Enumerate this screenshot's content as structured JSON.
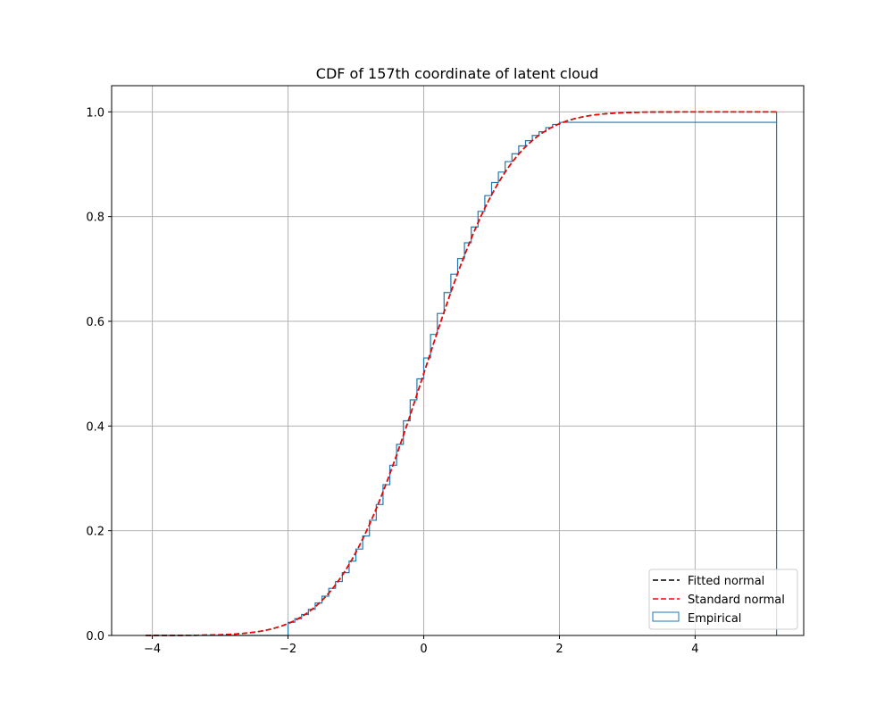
{
  "chart_data": {
    "type": "line",
    "title": "CDF of 157th coordinate of latent cloud",
    "xlabel": "",
    "ylabel": "",
    "xlim": [
      -4.6,
      5.6
    ],
    "ylim": [
      0.0,
      1.05
    ],
    "xticks": [
      -4,
      -2,
      0,
      2,
      4
    ],
    "xtick_labels": [
      "−4",
      "−2",
      "0",
      "2",
      "4"
    ],
    "yticks": [
      0.0,
      0.2,
      0.4,
      0.6,
      0.8,
      1.0
    ],
    "ytick_labels": [
      "0.0",
      "0.2",
      "0.4",
      "0.6",
      "0.8",
      "1.0"
    ],
    "grid": true,
    "legend_placement": "lower-right",
    "legend": [
      "Fitted normal",
      "Standard normal",
      "Empirical"
    ],
    "series": [
      {
        "name": "Fitted normal",
        "style": "dashed",
        "color": "#000000",
        "mean": 0.0,
        "std": 1.0,
        "x_range": [
          -4.1,
          5.2
        ]
      },
      {
        "name": "Standard normal",
        "style": "dashed",
        "color": "#ff0000",
        "mean": 0.0,
        "std": 1.0,
        "x_range": [
          -4.1,
          5.2
        ]
      },
      {
        "name": "Empirical",
        "style": "step",
        "color": "#1f77b4",
        "x": [
          -4.1,
          -2.0,
          -1.9,
          -1.8,
          -1.7,
          -1.6,
          -1.5,
          -1.4,
          -1.3,
          -1.2,
          -1.1,
          -1.0,
          -0.9,
          -0.8,
          -0.7,
          -0.6,
          -0.5,
          -0.4,
          -0.3,
          -0.2,
          -0.1,
          0.0,
          0.1,
          0.2,
          0.3,
          0.4,
          0.5,
          0.6,
          0.7,
          0.8,
          0.9,
          1.0,
          1.1,
          1.2,
          1.3,
          1.4,
          1.5,
          1.6,
          1.7,
          1.8,
          1.9,
          2.0,
          5.2
        ],
        "y": [
          0.0,
          0.025,
          0.032,
          0.04,
          0.05,
          0.062,
          0.075,
          0.09,
          0.103,
          0.12,
          0.142,
          0.165,
          0.19,
          0.22,
          0.25,
          0.288,
          0.325,
          0.365,
          0.41,
          0.45,
          0.49,
          0.53,
          0.575,
          0.615,
          0.655,
          0.69,
          0.72,
          0.75,
          0.78,
          0.81,
          0.84,
          0.865,
          0.885,
          0.905,
          0.92,
          0.935,
          0.945,
          0.955,
          0.962,
          0.97,
          0.976,
          0.98,
          1.0
        ]
      }
    ]
  }
}
